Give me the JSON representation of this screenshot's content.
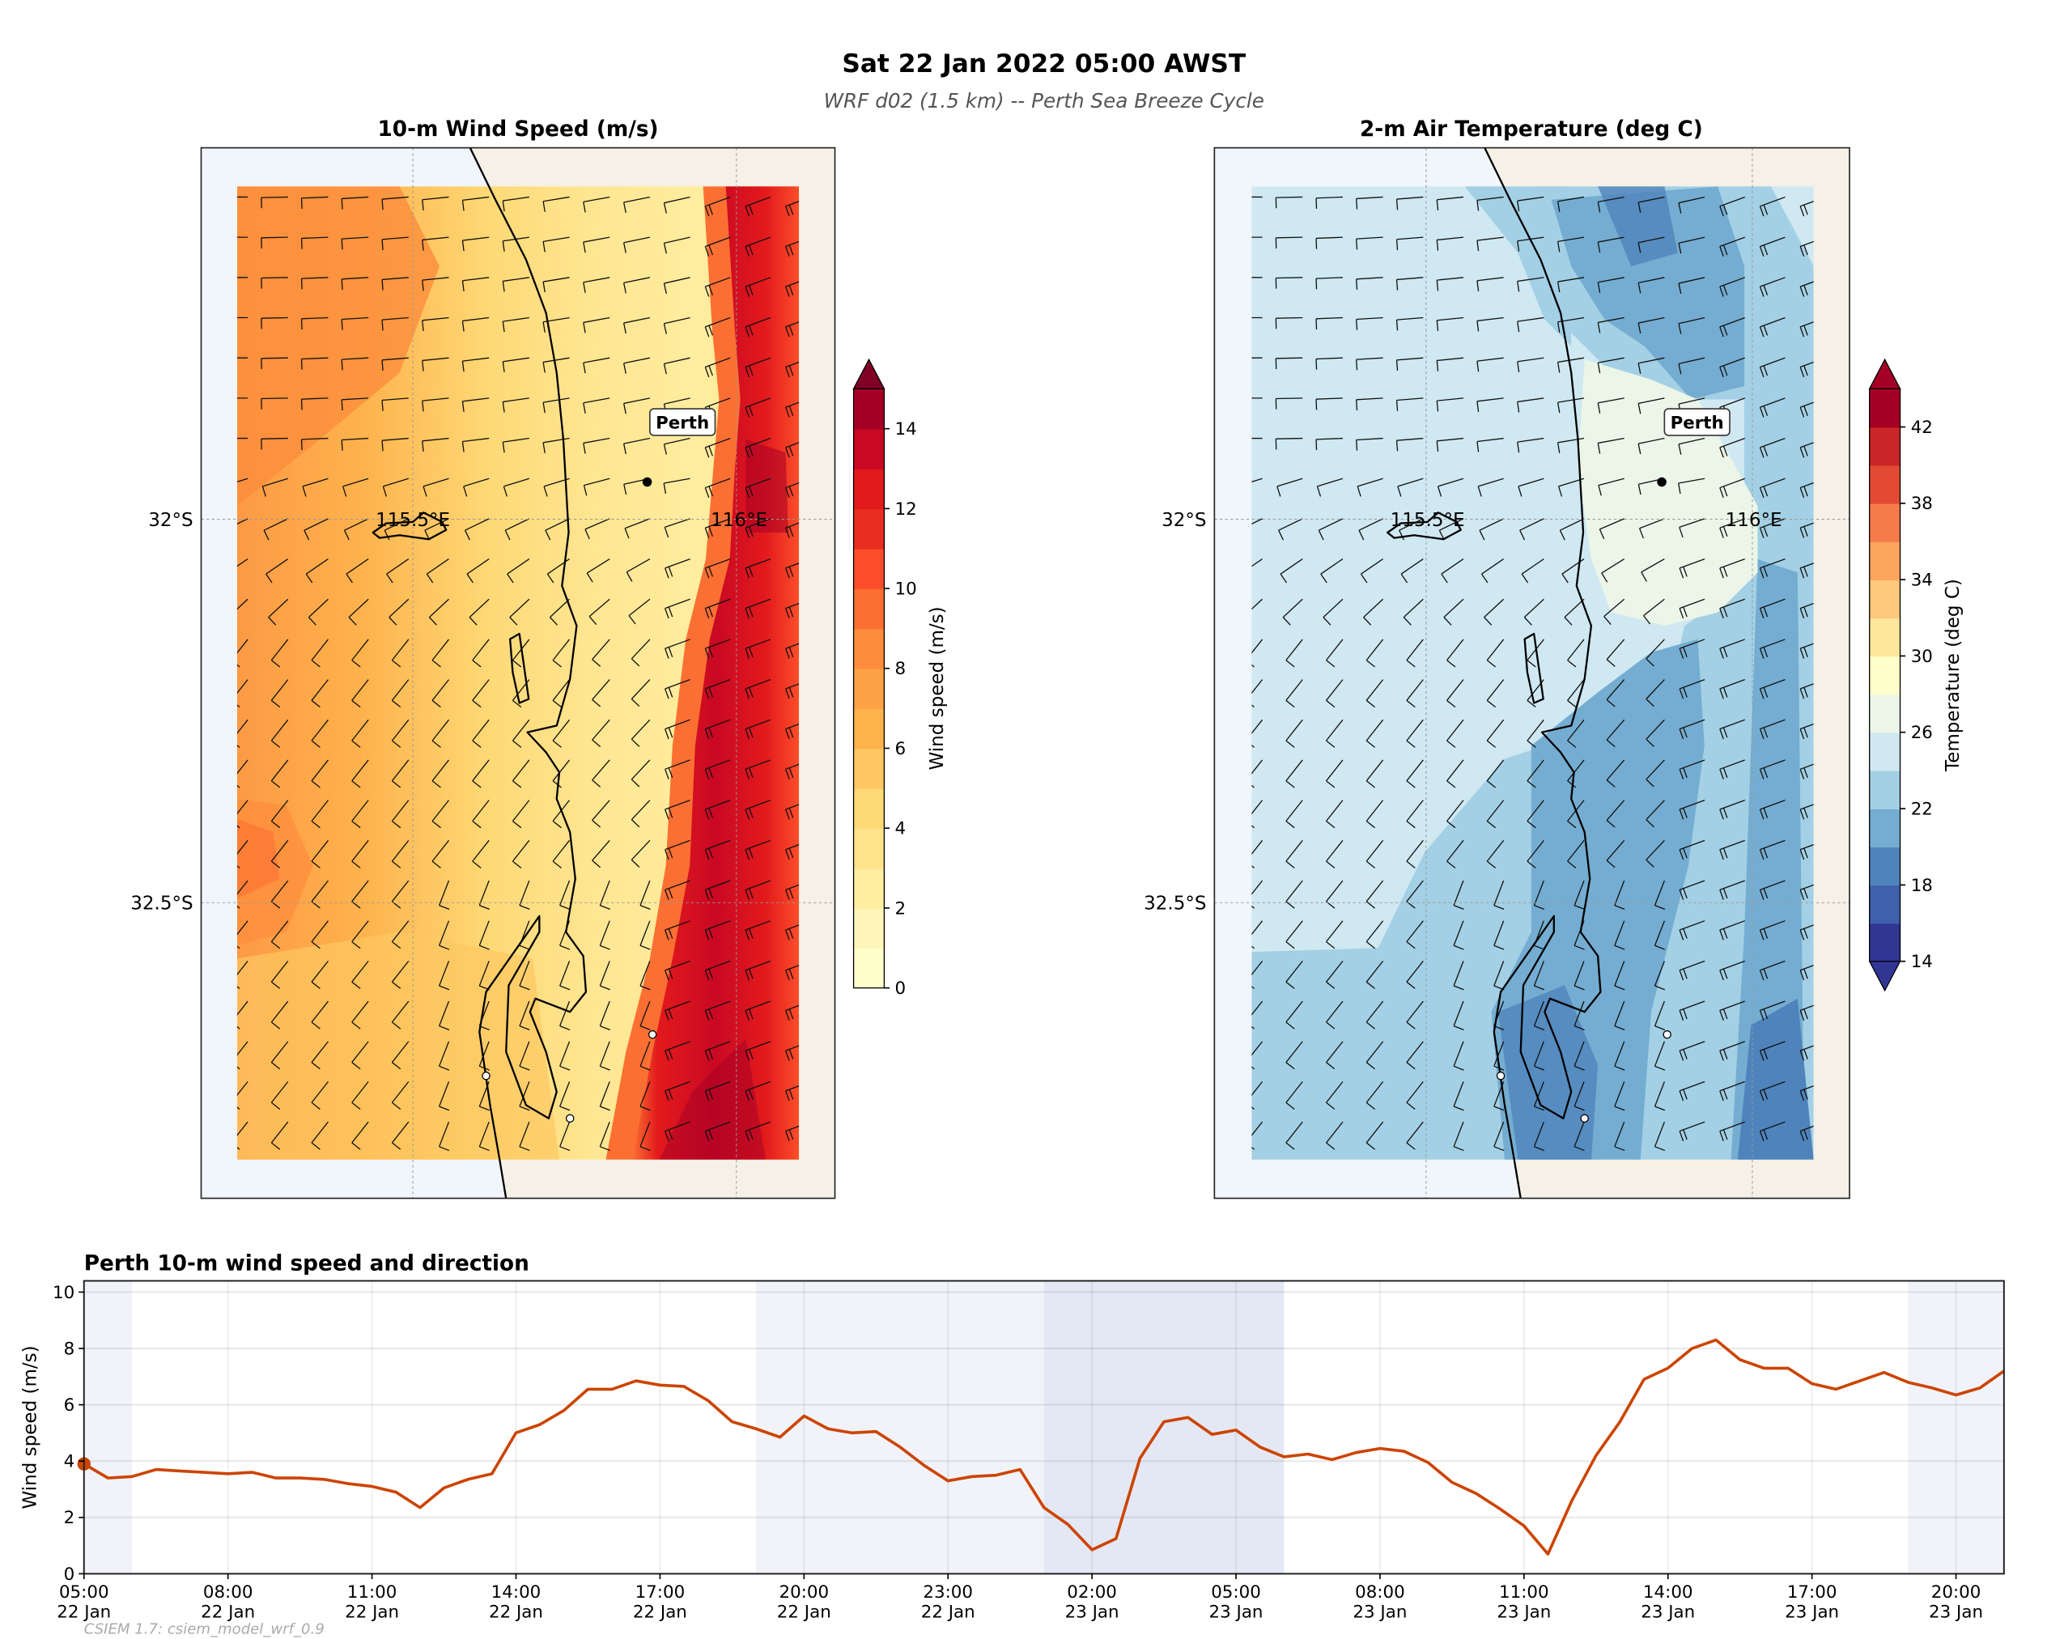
{
  "figure": {
    "title": "Sat 22 Jan 2022  05:00 AWST",
    "subtitle": "WRF d02 (1.5 km)  --  Perth Sea Breeze Cycle",
    "footer": "CSIEM 1.7: csiem_model_wrf_0.9"
  },
  "maps": [
    {
      "title": "10-m Wind Speed (m/s)",
      "lat_labels": [
        "32°S",
        "32.5°S"
      ],
      "lon_labels": [
        "115.5°E",
        "116°E"
      ],
      "place_label": "Perth",
      "colorbar": {
        "label": "Wind speed (m/s)",
        "ticks": [
          "0",
          "2",
          "4",
          "6",
          "8",
          "10",
          "12",
          "14"
        ],
        "range": [
          0,
          15
        ],
        "extend": "max",
        "colors": [
          "#ffffcc",
          "#fff5b8",
          "#ffeda0",
          "#fee38b",
          "#fed976",
          "#fec761",
          "#feb24c",
          "#fda245",
          "#fd8d3c",
          "#fc6f33",
          "#fc4e2a",
          "#e92d1f",
          "#e31a1c",
          "#c90823",
          "#a50026",
          "#800026"
        ]
      }
    },
    {
      "title": "2-m Air Temperature (deg C)",
      "lat_labels": [
        "32°S",
        "32.5°S"
      ],
      "lon_labels": [
        "115.5°E",
        "116°E"
      ],
      "place_label": "Perth",
      "colorbar": {
        "label": "Temperature (deg C)",
        "ticks": [
          "14",
          "18",
          "22",
          "26",
          "30",
          "34",
          "38",
          "42"
        ],
        "range": [
          14,
          44
        ],
        "extend": "both",
        "colors": [
          "#313695",
          "#4060ac",
          "#4f83bb",
          "#74add1",
          "#a3d0e4",
          "#cfe8f2",
          "#ebf5e8",
          "#ffffcc",
          "#fee69a",
          "#fec87a",
          "#fca55d",
          "#f57b4b",
          "#e34a33",
          "#cb2627",
          "#a50026"
        ]
      }
    }
  ],
  "chart_data": {
    "type": "line",
    "title": "Perth 10-m wind speed and direction",
    "ylabel": "Wind speed (m/s)",
    "xlabel": "",
    "ylim": [
      0,
      10.4
    ],
    "yticks": [
      "0",
      "2",
      "4",
      "6",
      "8",
      "10"
    ],
    "grid": true,
    "line_color": "#cc4400",
    "night_shading_color": "#e4e8f4",
    "xticks": [
      [
        "05:00",
        "22 Jan"
      ],
      [
        "08:00",
        "22 Jan"
      ],
      [
        "11:00",
        "22 Jan"
      ],
      [
        "14:00",
        "22 Jan"
      ],
      [
        "17:00",
        "22 Jan"
      ],
      [
        "20:00",
        "22 Jan"
      ],
      [
        "23:00",
        "22 Jan"
      ],
      [
        "02:00",
        "23 Jan"
      ],
      [
        "05:00",
        "23 Jan"
      ],
      [
        "08:00",
        "23 Jan"
      ],
      [
        "11:00",
        "23 Jan"
      ],
      [
        "14:00",
        "23 Jan"
      ],
      [
        "17:00",
        "23 Jan"
      ],
      [
        "20:00",
        "23 Jan"
      ]
    ],
    "x_range": [
      "22 Jan 05:00",
      "23 Jan 21:00"
    ],
    "shaded_periods": [
      {
        "start": "22 Jan 05:00",
        "end": "22 Jan 06:00",
        "shade": "light"
      },
      {
        "start": "22 Jan 19:00",
        "end": "23 Jan 01:00",
        "shade": "light"
      },
      {
        "start": "23 Jan 01:00",
        "end": "23 Jan 06:00",
        "shade": "dark"
      },
      {
        "start": "23 Jan 19:00",
        "end": "23 Jan 21:00",
        "shade": "light"
      }
    ],
    "current_marker": {
      "time": "22 Jan 05:00",
      "value": 3.9
    },
    "x": [
      "22 Jan 05:00",
      "22 Jan 05:30",
      "22 Jan 06:00",
      "22 Jan 06:30",
      "22 Jan 07:00",
      "22 Jan 07:30",
      "22 Jan 08:00",
      "22 Jan 08:30",
      "22 Jan 09:00",
      "22 Jan 09:30",
      "22 Jan 10:00",
      "22 Jan 10:30",
      "22 Jan 11:00",
      "22 Jan 11:30",
      "22 Jan 12:00",
      "22 Jan 12:30",
      "22 Jan 13:00",
      "22 Jan 13:30",
      "22 Jan 14:00",
      "22 Jan 14:30",
      "22 Jan 15:00",
      "22 Jan 15:30",
      "22 Jan 16:00",
      "22 Jan 16:30",
      "22 Jan 17:00",
      "22 Jan 17:30",
      "22 Jan 18:00",
      "22 Jan 18:30",
      "22 Jan 19:00",
      "22 Jan 19:30",
      "22 Jan 20:00",
      "22 Jan 20:30",
      "22 Jan 21:00",
      "22 Jan 21:30",
      "22 Jan 22:00",
      "22 Jan 22:30",
      "22 Jan 23:00",
      "22 Jan 23:30",
      "23 Jan 00:00",
      "23 Jan 00:30",
      "23 Jan 01:00",
      "23 Jan 01:30",
      "23 Jan 02:00",
      "23 Jan 02:30",
      "23 Jan 03:00",
      "23 Jan 03:30",
      "23 Jan 04:00",
      "23 Jan 04:30",
      "23 Jan 05:00",
      "23 Jan 05:30",
      "23 Jan 06:00",
      "23 Jan 06:30",
      "23 Jan 07:00",
      "23 Jan 07:30",
      "23 Jan 08:00",
      "23 Jan 08:30",
      "23 Jan 09:00",
      "23 Jan 09:30",
      "23 Jan 10:00",
      "23 Jan 10:30",
      "23 Jan 11:00",
      "23 Jan 11:30",
      "23 Jan 12:00",
      "23 Jan 12:30",
      "23 Jan 13:00",
      "23 Jan 13:30",
      "23 Jan 14:00",
      "23 Jan 14:30",
      "23 Jan 15:00",
      "23 Jan 15:30",
      "23 Jan 16:00",
      "23 Jan 16:30",
      "23 Jan 17:00",
      "23 Jan 17:30",
      "23 Jan 18:00",
      "23 Jan 18:30",
      "23 Jan 19:00",
      "23 Jan 19:30",
      "23 Jan 20:00",
      "23 Jan 20:30",
      "23 Jan 21:00"
    ],
    "values": [
      3.9,
      3.4,
      3.45,
      3.7,
      3.65,
      3.6,
      3.55,
      3.6,
      3.4,
      3.4,
      3.35,
      3.2,
      3.1,
      2.9,
      2.35,
      3.05,
      3.35,
      3.55,
      5.0,
      5.3,
      5.8,
      6.55,
      6.55,
      6.85,
      6.7,
      6.65,
      6.15,
      5.4,
      5.15,
      4.85,
      5.6,
      5.15,
      5.0,
      5.05,
      4.5,
      3.85,
      3.3,
      3.45,
      3.5,
      3.7,
      2.35,
      1.75,
      0.85,
      1.25,
      4.1,
      5.4,
      5.55,
      4.95,
      5.1,
      4.5,
      4.15,
      4.25,
      4.05,
      4.3,
      4.45,
      4.35,
      3.95,
      3.25,
      2.85,
      2.3,
      1.7,
      0.7,
      2.6,
      4.2,
      5.4,
      6.9,
      7.3,
      8.0,
      8.3,
      7.6,
      7.3,
      7.3,
      6.75,
      6.55,
      6.85,
      7.15,
      6.8,
      6.6,
      6.35,
      6.6,
      7.2
    ]
  }
}
